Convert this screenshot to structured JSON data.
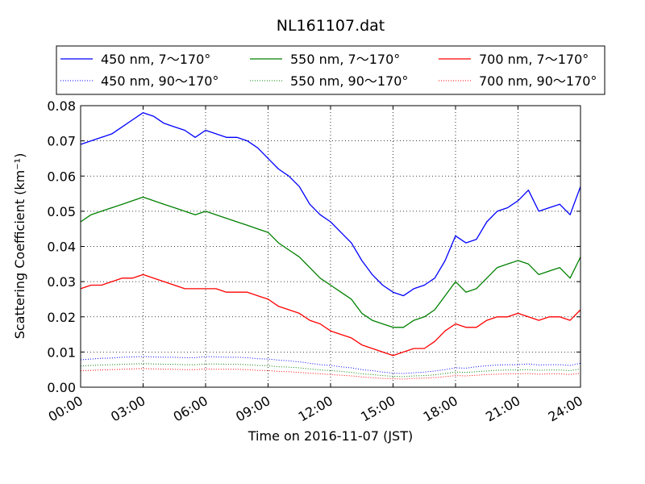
{
  "chart_data": {
    "type": "line",
    "title": "NL161107.dat",
    "xlabel": "Time on 2016-11-07 (JST)",
    "ylabel": "Scattering Coefficient (km⁻¹)",
    "xlim": [
      "00:00",
      "24:00"
    ],
    "ylim": [
      0,
      0.08
    ],
    "grid": true,
    "legend_position": "top, outside plot",
    "x_ticks": [
      "00:00",
      "03:00",
      "06:00",
      "09:00",
      "12:00",
      "15:00",
      "18:00",
      "21:00",
      "24:00"
    ],
    "y_ticks": [
      "0.00",
      "0.01",
      "0.02",
      "0.03",
      "0.04",
      "0.05",
      "0.06",
      "0.07",
      "0.08"
    ],
    "x_hours": [
      0,
      0.5,
      1,
      1.5,
      2,
      2.5,
      3,
      3.5,
      4,
      4.5,
      5,
      5.5,
      6,
      6.5,
      7,
      7.5,
      8,
      8.5,
      9,
      9.5,
      10,
      10.5,
      11,
      11.5,
      12,
      12.5,
      13,
      13.5,
      14,
      14.5,
      15,
      15.5,
      16,
      16.5,
      17,
      17.5,
      18,
      18.5,
      19,
      19.5,
      20,
      20.5,
      21,
      21.5,
      22,
      22.5,
      23,
      23.5,
      24
    ],
    "series": [
      {
        "name": "450 nm, 7～170°",
        "color": "#0000ff",
        "style": "solid",
        "values": [
          0.069,
          0.07,
          0.071,
          0.072,
          0.074,
          0.076,
          0.078,
          0.077,
          0.075,
          0.074,
          0.073,
          0.071,
          0.073,
          0.072,
          0.071,
          0.071,
          0.07,
          0.068,
          0.065,
          0.062,
          0.06,
          0.057,
          0.052,
          0.049,
          0.047,
          0.044,
          0.041,
          0.036,
          0.032,
          0.029,
          0.027,
          0.026,
          0.028,
          0.029,
          0.031,
          0.036,
          0.043,
          0.041,
          0.042,
          0.047,
          0.05,
          0.051,
          0.053,
          0.056,
          0.05,
          0.051,
          0.052,
          0.049,
          0.057
        ]
      },
      {
        "name": "550 nm, 7～170°",
        "color": "#008000",
        "style": "solid",
        "values": [
          0.047,
          0.049,
          0.05,
          0.051,
          0.052,
          0.053,
          0.054,
          0.053,
          0.052,
          0.051,
          0.05,
          0.049,
          0.05,
          0.049,
          0.048,
          0.047,
          0.046,
          0.045,
          0.044,
          0.041,
          0.039,
          0.037,
          0.034,
          0.031,
          0.029,
          0.027,
          0.025,
          0.021,
          0.019,
          0.018,
          0.017,
          0.017,
          0.019,
          0.02,
          0.022,
          0.026,
          0.03,
          0.027,
          0.028,
          0.031,
          0.034,
          0.035,
          0.036,
          0.035,
          0.032,
          0.033,
          0.034,
          0.031,
          0.037
        ]
      },
      {
        "name": "700 nm, 7～170°",
        "color": "#ff0000",
        "style": "solid",
        "values": [
          0.028,
          0.029,
          0.029,
          0.03,
          0.031,
          0.031,
          0.032,
          0.031,
          0.03,
          0.029,
          0.028,
          0.028,
          0.028,
          0.028,
          0.027,
          0.027,
          0.027,
          0.026,
          0.025,
          0.023,
          0.022,
          0.021,
          0.019,
          0.018,
          0.016,
          0.015,
          0.014,
          0.012,
          0.011,
          0.01,
          0.009,
          0.01,
          0.011,
          0.011,
          0.013,
          0.016,
          0.018,
          0.017,
          0.017,
          0.019,
          0.02,
          0.02,
          0.021,
          0.02,
          0.019,
          0.02,
          0.02,
          0.019,
          0.022
        ]
      },
      {
        "name": "450 nm, 90～170°",
        "color": "#0000ff",
        "style": "dotted",
        "values": [
          0.0078,
          0.008,
          0.0082,
          0.0083,
          0.0085,
          0.0086,
          0.0087,
          0.0086,
          0.0085,
          0.0085,
          0.0084,
          0.0084,
          0.0087,
          0.0086,
          0.0085,
          0.0085,
          0.0084,
          0.0081,
          0.008,
          0.0077,
          0.0075,
          0.0072,
          0.0068,
          0.0064,
          0.0062,
          0.0058,
          0.0055,
          0.005,
          0.0047,
          0.0043,
          0.004,
          0.0039,
          0.0041,
          0.0043,
          0.0046,
          0.005,
          0.0055,
          0.0054,
          0.0058,
          0.0061,
          0.0063,
          0.0064,
          0.0064,
          0.0066,
          0.0063,
          0.0064,
          0.0064,
          0.0062,
          0.0068
        ]
      },
      {
        "name": "550 nm, 90～170°",
        "color": "#008000",
        "style": "dotted",
        "values": [
          0.006,
          0.0062,
          0.0063,
          0.0064,
          0.0065,
          0.0066,
          0.0067,
          0.0066,
          0.0065,
          0.0065,
          0.0064,
          0.0064,
          0.0066,
          0.0066,
          0.0065,
          0.0065,
          0.0064,
          0.0062,
          0.0061,
          0.0058,
          0.0057,
          0.0055,
          0.0052,
          0.0049,
          0.0047,
          0.0045,
          0.0042,
          0.0038,
          0.0036,
          0.0033,
          0.0031,
          0.003,
          0.0032,
          0.0033,
          0.0035,
          0.0039,
          0.0043,
          0.0042,
          0.0044,
          0.0046,
          0.0048,
          0.0049,
          0.0049,
          0.005,
          0.0048,
          0.0049,
          0.0049,
          0.0047,
          0.0052
        ]
      },
      {
        "name": "700 nm, 90～170°",
        "color": "#ff0000",
        "style": "dotted",
        "values": [
          0.0047,
          0.0048,
          0.0049,
          0.005,
          0.0051,
          0.0052,
          0.0053,
          0.0052,
          0.0051,
          0.0051,
          0.005,
          0.005,
          0.0052,
          0.0051,
          0.0051,
          0.0051,
          0.005,
          0.0048,
          0.0047,
          0.0045,
          0.0044,
          0.0042,
          0.004,
          0.0038,
          0.0036,
          0.0034,
          0.0032,
          0.0029,
          0.0027,
          0.0025,
          0.0024,
          0.0023,
          0.0025,
          0.0026,
          0.0027,
          0.003,
          0.0033,
          0.0032,
          0.0034,
          0.0036,
          0.0037,
          0.0038,
          0.0038,
          0.0039,
          0.0037,
          0.0038,
          0.0038,
          0.0036,
          0.004
        ]
      }
    ]
  }
}
